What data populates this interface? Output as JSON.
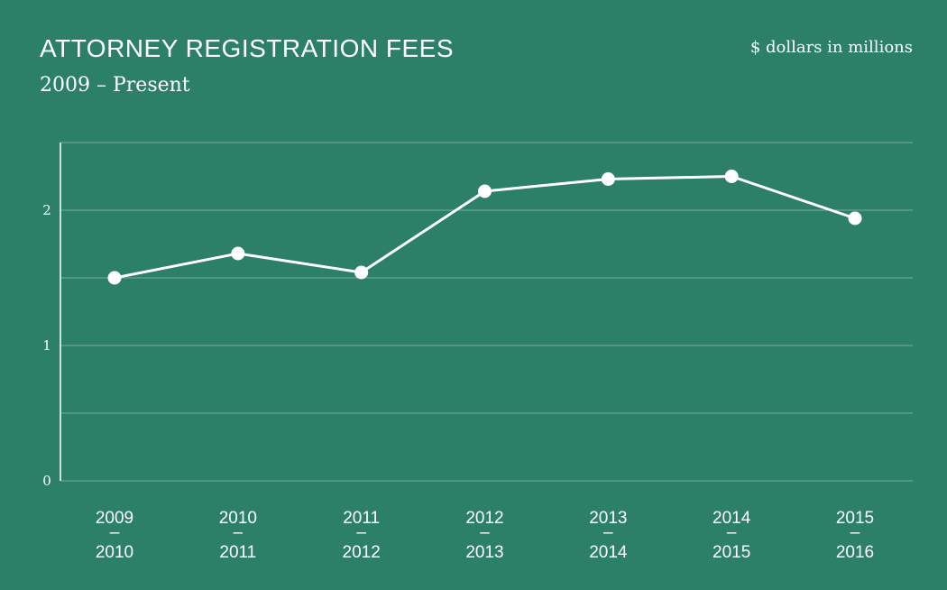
{
  "header": {
    "title": "ATTORNEY REGISTRATION FEES",
    "subtitle": "2009 – Present",
    "units": "$ dollars in millions"
  },
  "colors": {
    "background": "#2d8068",
    "line": "#ffffff",
    "grid": "#74ad99"
  },
  "chart_data": {
    "type": "line",
    "title": "ATTORNEY REGISTRATION FEES",
    "subtitle": "2009 – Present",
    "ylabel": "$ dollars in millions",
    "xlabel": "",
    "categories": [
      [
        "2009",
        "–",
        "2010"
      ],
      [
        "2010",
        "–",
        "2011"
      ],
      [
        "2011",
        "–",
        "2012"
      ],
      [
        "2012",
        "–",
        "2013"
      ],
      [
        "2013",
        "–",
        "2014"
      ],
      [
        "2014",
        "–",
        "2015"
      ],
      [
        "2015",
        "–",
        "2016"
      ]
    ],
    "values": [
      1.5,
      1.68,
      1.54,
      2.14,
      2.23,
      2.25,
      1.94
    ],
    "ylim": [
      0,
      2.5
    ],
    "yticks": [
      0,
      1,
      2
    ],
    "ytick_labels": [
      "0",
      "1",
      "2"
    ],
    "grid": true,
    "grid_step": 0.5,
    "legend": "none"
  }
}
